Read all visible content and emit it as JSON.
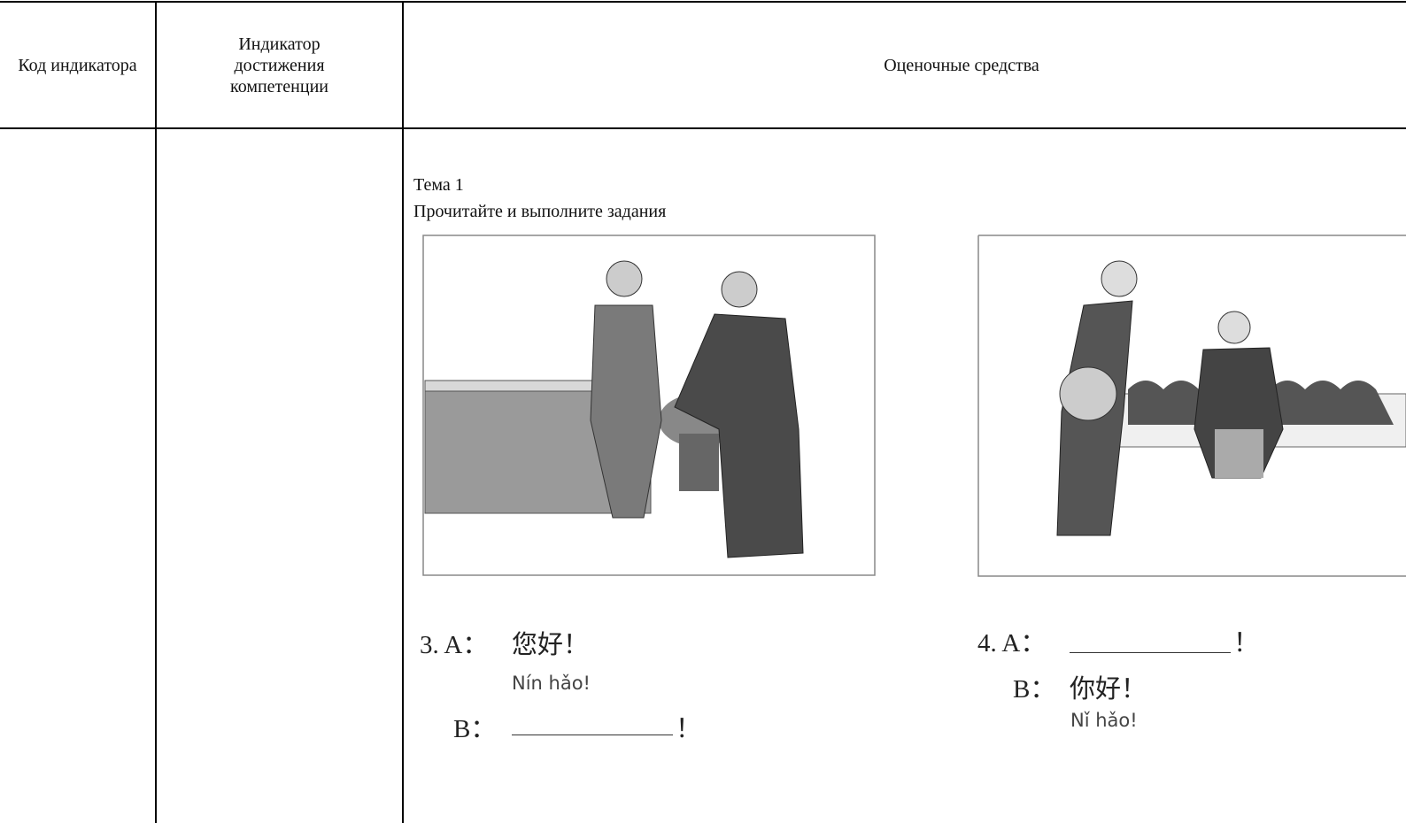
{
  "table": {
    "headers": [
      "Код индикатора",
      "Индикатор достижения компетенции",
      "Оценочные средства"
    ]
  },
  "content": {
    "topic": "Тема 1",
    "instruction": "Прочитайте и выполните задания",
    "exercises": [
      {
        "number": "3. A：",
        "text": "您好！",
        "pinyin": "Nín hǎo!",
        "reply_speaker": "B：",
        "reply_end": "！"
      },
      {
        "number": "4. A：",
        "end": "！",
        "reply_speaker": "B：",
        "reply_text": "你好！",
        "reply_pinyin": "Nǐ hǎo!"
      }
    ]
  }
}
